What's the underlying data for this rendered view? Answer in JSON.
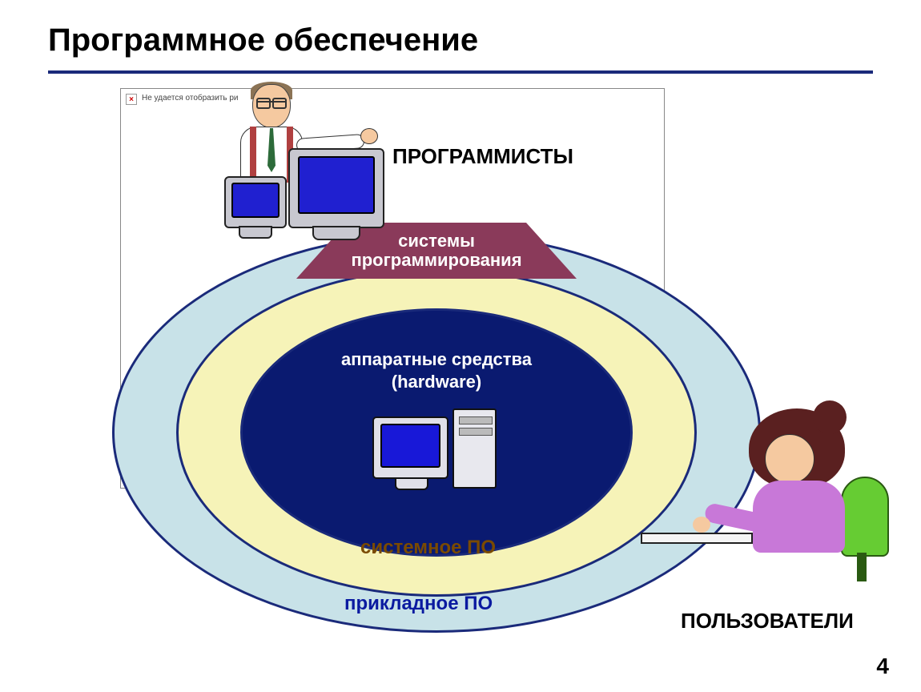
{
  "slide": {
    "title": "Программное обеспечение",
    "page_number": "4",
    "title_color": "#000000",
    "underline_color": "#1a2a7a",
    "background_color": "#ffffff"
  },
  "broken_image": {
    "icon_glyph": "×",
    "text": "Не удается отобразить ри"
  },
  "labels": {
    "programmers": "ПРОГРАММИСТЫ",
    "users": "ПОЛЬЗОВАТЕЛИ",
    "programming_systems_line1": "системы",
    "programming_systems_line2": "программирования",
    "hardware_line1": "аппаратные средства",
    "hardware_line2": "(hardware)",
    "system_software": "системное ПО",
    "application_software": "прикладное ПО"
  },
  "diagram": {
    "type": "nested-ellipses",
    "ellipses": {
      "outer": {
        "fill": "#c8e2e8",
        "stroke": "#1a2a7a",
        "label_key": "application_software",
        "label_color": "#0a1aa0"
      },
      "middle": {
        "fill": "#f6f3b8",
        "stroke": "#1a2a7a",
        "label_key": "system_software",
        "label_color": "#7a4a00"
      },
      "inner": {
        "fill": "#0a1a70",
        "stroke": "#1a2a7a",
        "label_color": "#ffffff"
      }
    },
    "trapezoid": {
      "fill": "#8a3a5a",
      "stroke": "#1a2a7a",
      "text_color": "#ffffff"
    },
    "monitor_screen_color": "#2020d0",
    "monitor_body_color": "#c8c8d0",
    "user_shirt_color": "#c878d8",
    "user_hair_color": "#5a2020",
    "user_chair_color": "#66cc33",
    "programmer_suspender_color": "#b04040",
    "programmer_tie_color": "#2d6b3a"
  },
  "fonts": {
    "title_size_pt": 30,
    "label_header_size_pt": 20,
    "label_ring_size_pt": 18
  }
}
